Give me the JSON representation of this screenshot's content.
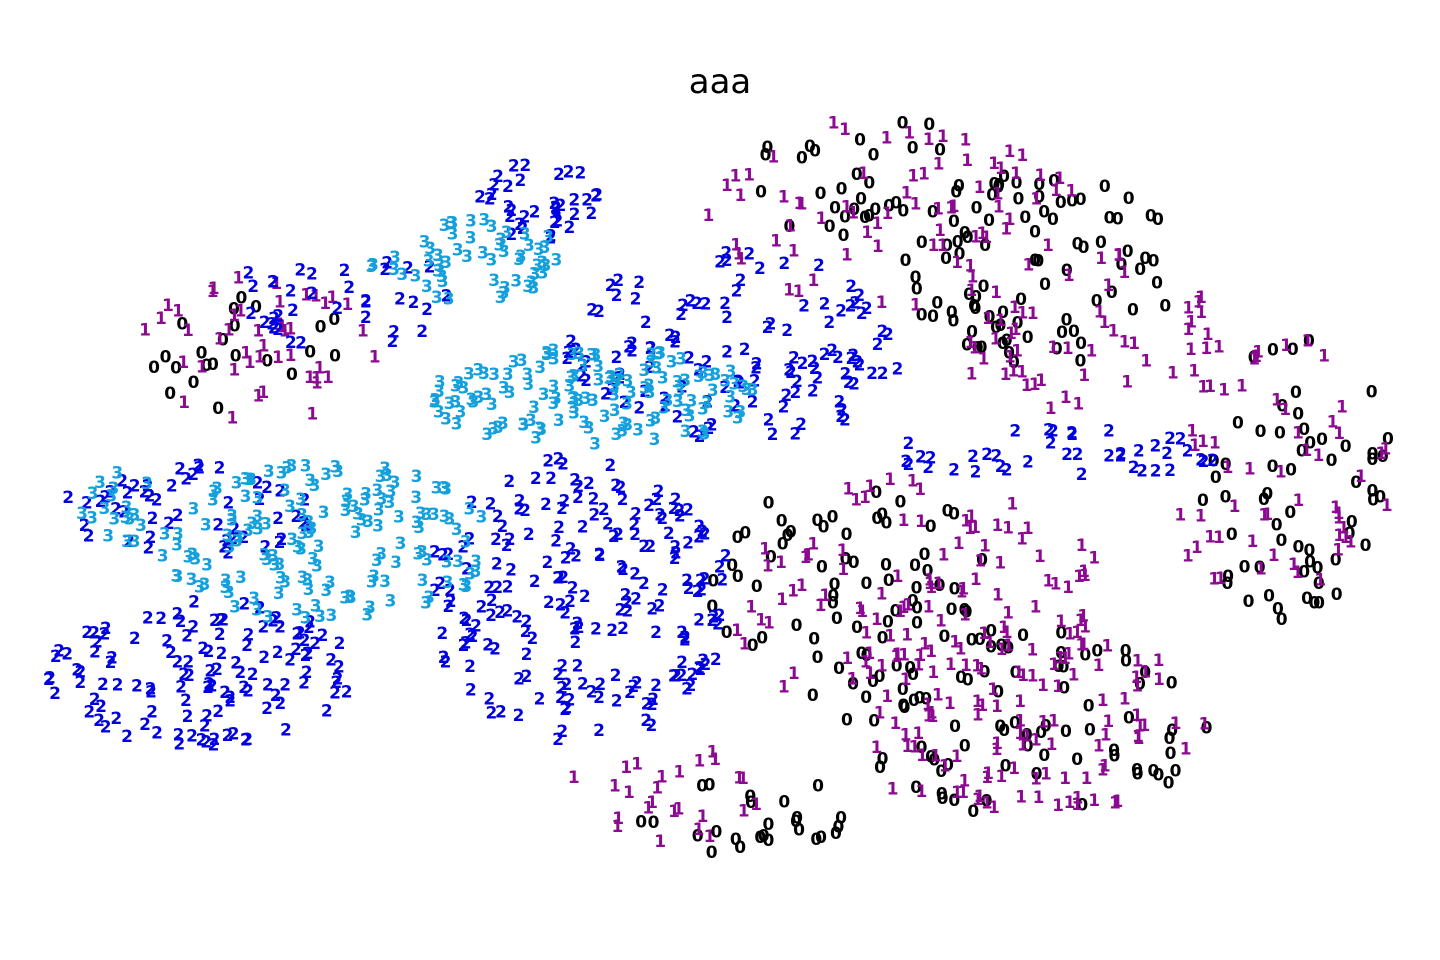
{
  "chart_data": {
    "type": "scatter",
    "title": "aaa",
    "xlabel": "",
    "ylabel": "",
    "axes_visible": false,
    "grid": false,
    "legend": "none",
    "xlim": [
      0,
      100
    ],
    "ylim": [
      0,
      100
    ],
    "marker": "text-label",
    "series": [
      {
        "label_text": "0",
        "color": "#000000",
        "regions": [
          {
            "cx": 61,
            "cy": 89,
            "rx": 9,
            "ry": 8,
            "n": 32
          },
          {
            "cx": 73,
            "cy": 78,
            "rx": 10,
            "ry": 12,
            "n": 85
          },
          {
            "cx": 91,
            "cy": 52,
            "rx": 7,
            "ry": 18,
            "n": 60
          },
          {
            "cx": 60,
            "cy": 38,
            "rx": 11,
            "ry": 14,
            "n": 70
          },
          {
            "cx": 72,
            "cy": 22,
            "rx": 13,
            "ry": 12,
            "n": 75
          },
          {
            "cx": 52,
            "cy": 11,
            "rx": 8,
            "ry": 6,
            "n": 25
          },
          {
            "cx": 17,
            "cy": 67,
            "rx": 8,
            "ry": 8,
            "n": 22
          }
        ]
      },
      {
        "label_text": "1",
        "color": "#8b0a91",
        "regions": [
          {
            "cx": 62,
            "cy": 85,
            "rx": 14,
            "ry": 12,
            "n": 70
          },
          {
            "cx": 76,
            "cy": 70,
            "rx": 10,
            "ry": 10,
            "n": 55
          },
          {
            "cx": 90,
            "cy": 52,
            "rx": 8,
            "ry": 18,
            "n": 55
          },
          {
            "cx": 64,
            "cy": 37,
            "rx": 14,
            "ry": 15,
            "n": 110
          },
          {
            "cx": 72,
            "cy": 22,
            "rx": 14,
            "ry": 12,
            "n": 95
          },
          {
            "cx": 17,
            "cy": 68,
            "rx": 9,
            "ry": 9,
            "n": 45
          },
          {
            "cx": 46,
            "cy": 13,
            "rx": 7,
            "ry": 6,
            "n": 25
          }
        ]
      },
      {
        "label_text": "2",
        "color": "#0000e0",
        "regions": [
          {
            "cx": 40,
            "cy": 37,
            "rx": 11,
            "ry": 18,
            "n": 200
          },
          {
            "cx": 13,
            "cy": 28,
            "rx": 11,
            "ry": 9,
            "n": 120
          },
          {
            "cx": 51,
            "cy": 68,
            "rx": 12,
            "ry": 12,
            "n": 120
          },
          {
            "cx": 12,
            "cy": 48,
            "rx": 9,
            "ry": 6,
            "n": 50
          },
          {
            "cx": 37,
            "cy": 86,
            "rx": 5,
            "ry": 5,
            "n": 35
          },
          {
            "cx": 74,
            "cy": 55,
            "rx": 12,
            "ry": 3,
            "n": 40
          },
          {
            "cx": 24,
            "cy": 74,
            "rx": 10,
            "ry": 6,
            "n": 35
          }
        ]
      },
      {
        "label_text": "3",
        "color": "#13a0dc",
        "regions": [
          {
            "cx": 41,
            "cy": 62,
            "rx": 12,
            "ry": 6,
            "n": 130
          },
          {
            "cx": 22,
            "cy": 44,
            "rx": 12,
            "ry": 10,
            "n": 150
          },
          {
            "cx": 32,
            "cy": 79,
            "rx": 7,
            "ry": 5,
            "n": 55
          },
          {
            "cx": 7,
            "cy": 48,
            "rx": 3,
            "ry": 5,
            "n": 18
          }
        ]
      }
    ]
  }
}
